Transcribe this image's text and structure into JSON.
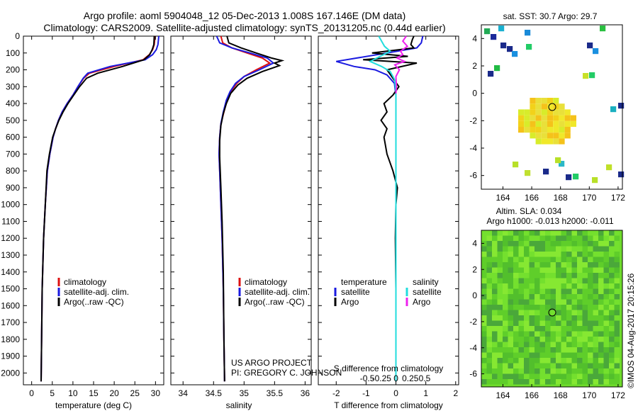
{
  "title_line1": "Argo profile: aoml 5904048_12 05-Dec-2013 1.008S 167.146E (DM data)",
  "title_line2": "Climatology: CARS2009. Satellite-adjusted climatology: synTS_20131205.nc (0.44d earlier)",
  "sst_title": "sat. SST: 30.7  Argo: 29.7",
  "sla_title1": "Altim. SLA: 0.034",
  "sla_title2": "Argo h1000: -0.013  h2000: -0.011",
  "project_line1": "US ARGO PROJECT",
  "project_line2": "PI: GREGORY C. JOHNSON",
  "timestamp": "©IMOS 04-Aug-2017 20:15:26",
  "colors": {
    "climatology": "#dd1010",
    "satellite": "#1a1ae0",
    "argo": "#000000",
    "sal_satellite": "#22dddd",
    "sal_argo": "#ee22ee"
  },
  "legend1": {
    "climatology": "climatology",
    "satellite": "satellite-adj. clim.",
    "argo": "Argo(..raw -QC)"
  },
  "legend2": {
    "climatology": "climatology",
    "satellite": "satellite-adj. clim.",
    "argo": "Argo(..raw -QC)"
  },
  "legend3": {
    "head_temp": "temperature",
    "head_sal": "salinity",
    "satellite": "satellite",
    "argo": "Argo",
    "sal_satellite": "satellite",
    "sal_argo": "Argo"
  },
  "chart_data": [
    {
      "type": "line",
      "xlabel": "temperature (deg C)",
      "xlim": [
        -2,
        32
      ],
      "ylim": [
        2070,
        0
      ],
      "xticks": [
        0,
        5,
        10,
        15,
        20,
        25,
        30
      ],
      "yticks": [
        0,
        100,
        200,
        300,
        400,
        500,
        600,
        700,
        800,
        900,
        1000,
        1100,
        1200,
        1300,
        1400,
        1500,
        1600,
        1700,
        1800,
        1900,
        2000
      ],
      "series": [
        {
          "name": "climatology",
          "x": [
            29.9,
            29.7,
            29.3,
            28.5,
            27.0,
            20.0,
            14.0,
            12.6,
            11.2,
            10.0,
            8.6,
            7.4,
            6.5,
            5.8,
            5.2,
            4.4,
            3.8,
            3.3,
            2.9,
            2.55,
            2.3
          ],
          "y": [
            0,
            50,
            80,
            110,
            140,
            180,
            220,
            250,
            300,
            350,
            400,
            450,
            500,
            550,
            600,
            700,
            800,
            1000,
            1200,
            1500,
            2050
          ]
        },
        {
          "name": "satellite-adj. clim.",
          "x": [
            30.8,
            30.6,
            30.2,
            29.3,
            27.5,
            19.0,
            13.6,
            12.5,
            11.2,
            10.0,
            8.6,
            7.4,
            6.5,
            5.8,
            5.2,
            4.4,
            3.8,
            3.3,
            2.9,
            2.55,
            2.3
          ],
          "y": [
            0,
            50,
            80,
            110,
            140,
            180,
            220,
            250,
            300,
            350,
            400,
            450,
            500,
            550,
            600,
            700,
            800,
            1000,
            1200,
            1500,
            2050
          ]
        },
        {
          "name": "Argo(..raw -QC)",
          "x": [
            29.7,
            29.6,
            29.2,
            28.6,
            27.2,
            22.0,
            16.0,
            13.3,
            11.6,
            10.2,
            8.8,
            7.6,
            6.6,
            5.8,
            5.1,
            4.3,
            3.7,
            3.3,
            2.9,
            2.55,
            2.3
          ],
          "y": [
            0,
            50,
            80,
            110,
            140,
            180,
            220,
            250,
            300,
            350,
            400,
            450,
            500,
            550,
            600,
            700,
            800,
            1000,
            1200,
            1500,
            2050
          ]
        }
      ]
    },
    {
      "type": "line",
      "xlabel": "salinity",
      "xlim": [
        33.8,
        36.1
      ],
      "ylim": [
        2070,
        0
      ],
      "xticks": [
        34,
        34.5,
        35,
        35.5,
        36
      ],
      "series": [
        {
          "name": "climatology",
          "x": [
            34.62,
            34.65,
            34.8,
            35.05,
            35.3,
            35.42,
            35.2,
            35.0,
            34.88,
            34.78,
            34.72,
            34.67,
            34.62,
            34.6,
            34.59,
            34.6,
            34.62,
            34.64,
            34.66,
            34.67,
            34.68
          ],
          "y": [
            0,
            40,
            70,
            100,
            130,
            160,
            200,
            240,
            280,
            330,
            380,
            450,
            520,
            600,
            700,
            800,
            1000,
            1200,
            1500,
            1800,
            2050
          ]
        },
        {
          "name": "satellite-adj. clim.",
          "x": [
            34.55,
            34.6,
            34.8,
            35.1,
            35.38,
            35.48,
            35.25,
            35.0,
            34.86,
            34.77,
            34.71,
            34.66,
            34.62,
            34.6,
            34.59,
            34.6,
            34.62,
            34.64,
            34.66,
            34.67,
            34.68
          ],
          "y": [
            0,
            40,
            70,
            100,
            130,
            160,
            200,
            240,
            280,
            330,
            380,
            450,
            520,
            600,
            700,
            800,
            1000,
            1200,
            1500,
            1800,
            2050
          ]
        },
        {
          "name": "Argo(..raw -QC)",
          "x": [
            34.72,
            34.75,
            34.95,
            35.2,
            35.45,
            35.62,
            35.5,
            35.58,
            35.3,
            35.05,
            34.9,
            34.78,
            34.71,
            34.66,
            34.62,
            34.6,
            34.6,
            34.62,
            34.64,
            34.66,
            34.67,
            34.68
          ],
          "y": [
            0,
            40,
            70,
            100,
            130,
            145,
            160,
            175,
            210,
            250,
            290,
            340,
            400,
            460,
            530,
            620,
            720,
            900,
            1100,
            1400,
            1800,
            2050
          ]
        }
      ]
    },
    {
      "type": "line",
      "xlabel": "T difference from climatology",
      "xlabel2": "S difference from climatology",
      "xlim": [
        -2.6,
        2.1
      ],
      "ylim": [
        2070,
        0
      ],
      "xticks": [
        -2,
        -1,
        0,
        1,
        2
      ],
      "xticks_top": [
        -0.5,
        -0.25,
        0,
        0.25,
        0.5
      ],
      "xticks_top_labels": [
        "-0.5",
        "-0.25",
        "0",
        "0.25",
        "0.5"
      ],
      "series": [
        {
          "name": "temperature satellite",
          "x": [
            0.9,
            0.85,
            0.7,
            -0.3,
            -2.0,
            -1.4,
            -0.7,
            -0.3,
            -0.05,
            0.0,
            0.0,
            0.0,
            0.0
          ],
          "y": [
            0,
            40,
            70,
            100,
            150,
            180,
            200,
            230,
            280,
            350,
            500,
            1000,
            2050
          ]
        },
        {
          "name": "temperature Argo",
          "x": [
            0.6,
            0.55,
            0.5,
            0.6,
            -0.8,
            0.4,
            -1.1,
            0.7,
            -0.3,
            -0.1,
            0.1,
            -0.1,
            -0.4,
            -0.3,
            -0.5,
            -0.3,
            -0.4,
            -0.35,
            -0.3,
            -0.1,
            0.05,
            0.0,
            -0.02,
            0.0,
            0.0
          ],
          "y": [
            0,
            20,
            50,
            70,
            100,
            120,
            140,
            160,
            200,
            250,
            300,
            350,
            400,
            450,
            500,
            550,
            600,
            650,
            700,
            800,
            900,
            1000,
            1200,
            1500,
            2050
          ]
        },
        {
          "name": "salinity satellite",
          "x": [
            -0.3,
            -0.25,
            -0.2,
            -0.1,
            -0.45,
            -0.25,
            -0.1,
            -0.02,
            0.0,
            0.0,
            0.0
          ],
          "y": [
            0,
            30,
            60,
            90,
            150,
            180,
            210,
            260,
            330,
            500,
            2050
          ]
        },
        {
          "name": "salinity Argo",
          "x": [
            0.18,
            0.12,
            0.2,
            0.08,
            0.12,
            0.02,
            0.15,
            -0.02,
            0.06,
            0.0,
            0.01,
            0.0
          ],
          "y": [
            0,
            30,
            60,
            90,
            110,
            130,
            150,
            170,
            200,
            240,
            300,
            340
          ]
        }
      ]
    },
    {
      "type": "heatmap",
      "title": "sat. SST: 30.7  Argo: 29.7",
      "xlim": [
        162.5,
        172.3
      ],
      "ylim": [
        -7,
        5
      ],
      "xticks": [
        164,
        166,
        168,
        170,
        172
      ],
      "yticks": [
        4,
        2,
        0,
        -2,
        -4,
        -6
      ],
      "float_position": {
        "lon": 167.146,
        "lat": -1.008
      }
    },
    {
      "type": "heatmap",
      "title": "Altim. SLA: 0.034",
      "xlim": [
        162.5,
        172.3
      ],
      "ylim": [
        -7,
        5
      ],
      "xticks": [
        164,
        166,
        168,
        170,
        172
      ],
      "yticks": [
        4,
        2,
        0,
        -2,
        -4,
        -6
      ],
      "float_position": {
        "lon": 167.146,
        "lat": -1.008
      }
    }
  ]
}
